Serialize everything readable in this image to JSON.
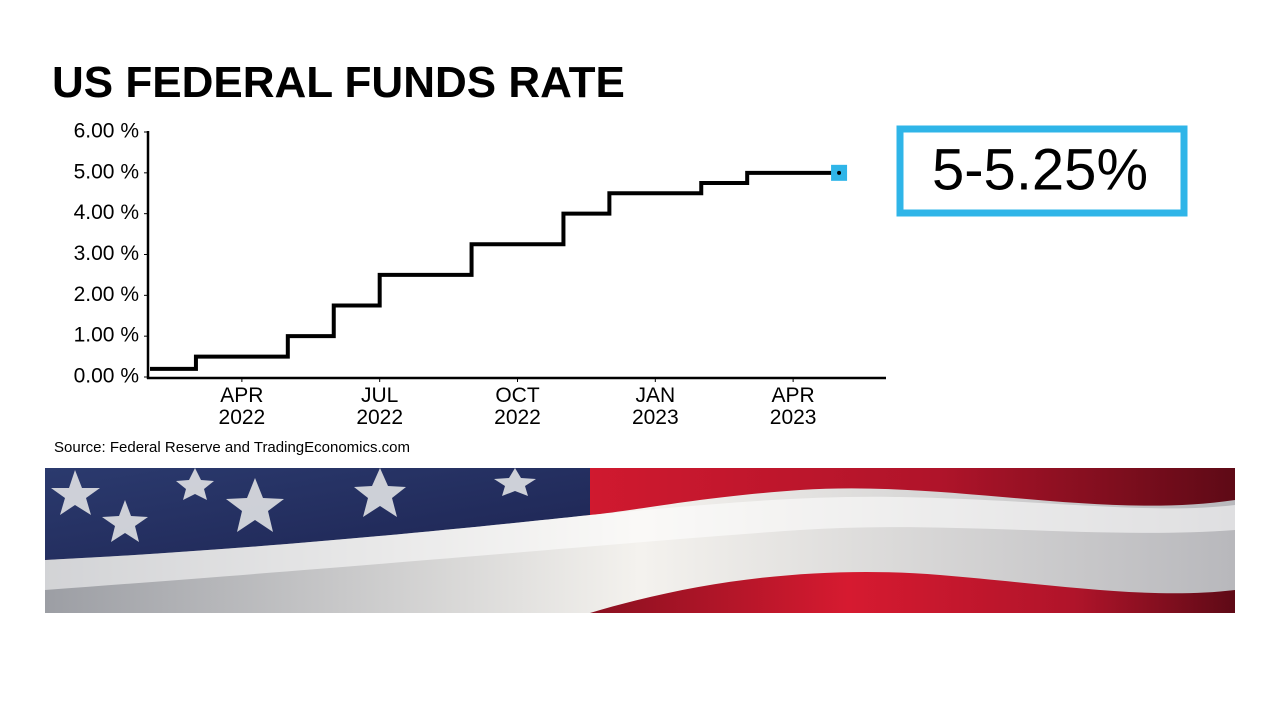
{
  "chart_data": {
    "type": "step",
    "title": "US FEDERAL FUNDS RATE",
    "source": "Source: Federal Reserve and TradingEconomics.com",
    "annotation": "5-5.25%",
    "x": [
      "2022-02",
      "2022-03",
      "2022-05",
      "2022-06",
      "2022-07",
      "2022-09",
      "2022-11",
      "2022-12",
      "2023-02",
      "2023-03",
      "2023-05"
    ],
    "values": [
      0.2,
      0.5,
      1.0,
      1.75,
      2.5,
      3.25,
      4.0,
      4.5,
      4.75,
      5.0,
      5.0
    ],
    "color": "#000000",
    "marker_color": "#2fb5e8",
    "xlim": [
      "2022-02",
      "2023-06"
    ],
    "xticks": [
      {
        "value": "2022-04",
        "label": "APR 2022"
      },
      {
        "value": "2022-07",
        "label": "JUL 2022"
      },
      {
        "value": "2022-10",
        "label": "OCT 2022"
      },
      {
        "value": "2023-01",
        "label": "JAN 2023"
      },
      {
        "value": "2023-04",
        "label": "APR 2023"
      }
    ],
    "ylim": [
      0,
      6
    ],
    "yticks": [
      {
        "value": 0,
        "label": "0.00 %"
      },
      {
        "value": 1,
        "label": "1.00 %"
      },
      {
        "value": 2,
        "label": "2.00 %"
      },
      {
        "value": 3,
        "label": "3.00 %"
      },
      {
        "value": 4,
        "label": "4.00 %"
      },
      {
        "value": 5,
        "label": "5.00 %"
      },
      {
        "value": 6,
        "label": "6.00 %"
      }
    ],
    "grid": false
  }
}
